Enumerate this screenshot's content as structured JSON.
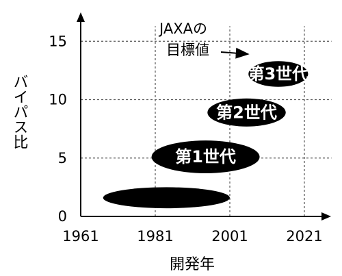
{
  "chart_data": {
    "type": "scatter",
    "title": "",
    "xlabel": "開発年",
    "ylabel": "バイパス比",
    "xlim": [
      1961,
      2029
    ],
    "ylim": [
      0,
      17
    ],
    "x_ticks": [
      "1961",
      "1981",
      "2001",
      "2021"
    ],
    "y_ticks": [
      "0",
      "5",
      "10",
      "15"
    ],
    "grid": "dashed",
    "regions": [
      {
        "label": "",
        "x_start": 1967,
        "x_end": 2001,
        "y_center": 1.6,
        "y_half_height": 0.9
      },
      {
        "label": "第1世代",
        "x_start": 1980,
        "x_end": 2009,
        "y_center": 5.1,
        "y_half_height": 1.4
      },
      {
        "label": "第2世代",
        "x_start": 1995,
        "x_end": 2016,
        "y_center": 8.9,
        "y_half_height": 1.2
      },
      {
        "label": "第3世代",
        "x_start": 2006,
        "x_end": 2022,
        "y_center": 12.2,
        "y_half_height": 1.1
      }
    ],
    "annotation": {
      "lines": [
        "JAXAの",
        "目標値"
      ],
      "arrow_target_x": 2007,
      "arrow_target_y": 13.2
    }
  }
}
